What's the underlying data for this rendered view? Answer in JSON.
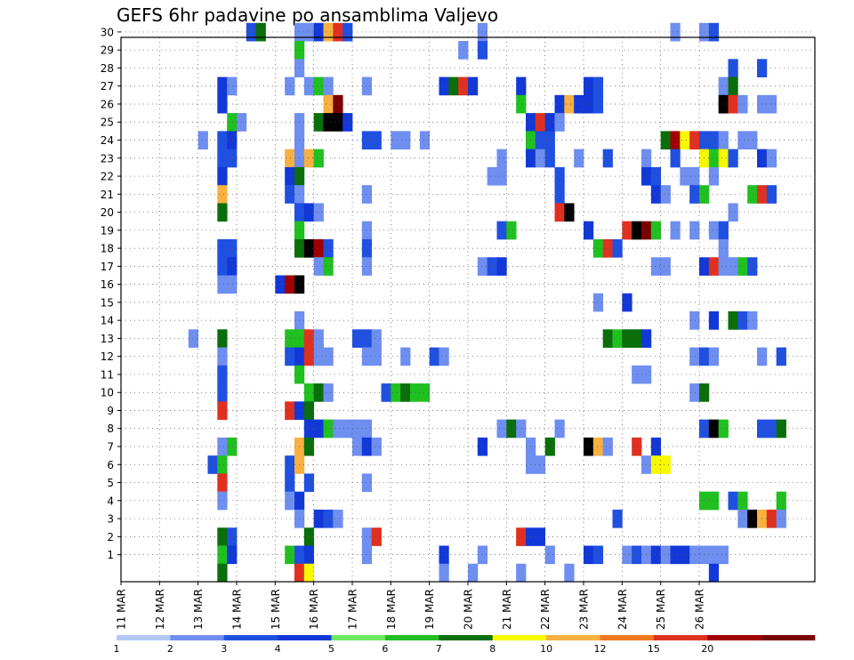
{
  "chart_data": {
    "type": "heatmap",
    "title": "GEFS 6hr padavine po ansamblima Valjevo",
    "y_ticks": [
      "1",
      "2",
      "3",
      "4",
      "5",
      "6",
      "7",
      "8",
      "9",
      "10",
      "11",
      "12",
      "13",
      "14",
      "15",
      "16",
      "17",
      "18",
      "19",
      "20",
      "21",
      "22",
      "23",
      "24",
      "25",
      "26",
      "27",
      "28",
      "29",
      "30"
    ],
    "x_ticks": [
      "11 MAR",
      "12 MAR",
      "13 MAR",
      "14 MAR",
      "15 MAR",
      "16 MAR",
      "17 MAR",
      "18 MAR",
      "19 MAR",
      "20 MAR",
      "21 MAR",
      "22 MAR",
      "23 MAR",
      "24 MAR",
      "25 MAR",
      "26 MAR"
    ],
    "x_axis_start": "2019-03-11 00Z",
    "time_step_hours": 6,
    "grid": true,
    "colorbar": {
      "levels": [
        "1",
        "2",
        "3",
        "4",
        "5",
        "6",
        "7",
        "8",
        "10",
        "12",
        "15",
        "20"
      ],
      "colors": [
        "#b4c8f8",
        "#6e8ef0",
        "#2050e0",
        "#1238d8",
        "#6ee860",
        "#20c020",
        "#0a6e0a",
        "#f8f800",
        "#f8b040",
        "#f07820",
        "#e03020",
        "#a00000",
        "#7a0000"
      ]
    },
    "cells": [
      [
        30,
        13,
        2
      ],
      [
        30,
        14,
        6
      ],
      [
        30,
        18,
        1
      ],
      [
        30,
        19,
        1
      ],
      [
        30,
        20,
        3
      ],
      [
        30,
        21,
        8
      ],
      [
        30,
        22,
        10
      ],
      [
        30,
        23,
        2
      ],
      [
        30,
        37,
        1
      ],
      [
        30,
        57,
        1
      ],
      [
        30,
        60,
        1
      ],
      [
        30,
        61,
        2
      ],
      [
        29,
        18,
        5
      ],
      [
        29,
        35,
        1
      ],
      [
        29,
        37,
        2
      ],
      [
        28,
        18,
        1
      ],
      [
        28,
        63,
        2
      ],
      [
        28,
        66,
        2
      ],
      [
        27,
        10,
        3
      ],
      [
        27,
        11,
        1
      ],
      [
        27,
        17,
        1
      ],
      [
        27,
        19,
        1
      ],
      [
        27,
        20,
        5
      ],
      [
        27,
        21,
        1
      ],
      [
        27,
        25,
        1
      ],
      [
        27,
        33,
        3
      ],
      [
        27,
        34,
        6
      ],
      [
        27,
        35,
        10
      ],
      [
        27,
        36,
        3
      ],
      [
        27,
        41,
        3
      ],
      [
        27,
        48,
        3
      ],
      [
        27,
        49,
        2
      ],
      [
        27,
        62,
        1
      ],
      [
        27,
        63,
        6
      ],
      [
        26,
        10,
        3
      ],
      [
        26,
        21,
        8
      ],
      [
        26,
        22,
        12
      ],
      [
        26,
        41,
        5
      ],
      [
        26,
        45,
        3
      ],
      [
        26,
        46,
        8
      ],
      [
        26,
        47,
        3
      ],
      [
        26,
        48,
        3
      ],
      [
        26,
        49,
        2
      ],
      [
        26,
        62,
        13
      ],
      [
        26,
        63,
        10
      ],
      [
        26,
        64,
        1
      ],
      [
        26,
        66,
        1
      ],
      [
        26,
        67,
        1
      ],
      [
        25,
        11,
        5
      ],
      [
        25,
        12,
        1
      ],
      [
        25,
        18,
        1
      ],
      [
        25,
        20,
        6
      ],
      [
        25,
        21,
        14
      ],
      [
        25,
        22,
        14
      ],
      [
        25,
        23,
        3
      ],
      [
        25,
        42,
        3
      ],
      [
        25,
        43,
        10
      ],
      [
        25,
        44,
        3
      ],
      [
        25,
        45,
        1
      ],
      [
        24,
        8,
        1
      ],
      [
        24,
        10,
        2
      ],
      [
        24,
        11,
        3
      ],
      [
        24,
        18,
        1
      ],
      [
        24,
        25,
        2
      ],
      [
        24,
        26,
        2
      ],
      [
        24,
        28,
        1
      ],
      [
        24,
        29,
        1
      ],
      [
        24,
        31,
        1
      ],
      [
        24,
        42,
        5
      ],
      [
        24,
        43,
        2
      ],
      [
        24,
        44,
        2
      ],
      [
        24,
        56,
        6
      ],
      [
        24,
        57,
        11
      ],
      [
        24,
        58,
        7
      ],
      [
        24,
        59,
        10
      ],
      [
        24,
        60,
        2
      ],
      [
        24,
        61,
        2
      ],
      [
        24,
        62,
        1
      ],
      [
        24,
        64,
        1
      ],
      [
        24,
        65,
        1
      ],
      [
        23,
        10,
        2
      ],
      [
        23,
        11,
        2
      ],
      [
        23,
        17,
        8
      ],
      [
        23,
        18,
        1
      ],
      [
        23,
        19,
        8
      ],
      [
        23,
        20,
        5
      ],
      [
        23,
        39,
        1
      ],
      [
        23,
        42,
        3
      ],
      [
        23,
        43,
        1
      ],
      [
        23,
        44,
        2
      ],
      [
        23,
        47,
        1
      ],
      [
        23,
        50,
        2
      ],
      [
        23,
        54,
        1
      ],
      [
        23,
        57,
        2
      ],
      [
        23,
        60,
        7
      ],
      [
        23,
        61,
        5
      ],
      [
        23,
        62,
        7
      ],
      [
        23,
        63,
        2
      ],
      [
        23,
        66,
        3
      ],
      [
        23,
        67,
        1
      ],
      [
        22,
        10,
        3
      ],
      [
        22,
        17,
        3
      ],
      [
        22,
        18,
        6
      ],
      [
        22,
        38,
        1
      ],
      [
        22,
        39,
        1
      ],
      [
        22,
        45,
        2
      ],
      [
        22,
        54,
        3
      ],
      [
        22,
        55,
        2
      ],
      [
        22,
        58,
        1
      ],
      [
        22,
        59,
        1
      ],
      [
        22,
        61,
        1
      ],
      [
        21,
        10,
        8
      ],
      [
        21,
        17,
        2
      ],
      [
        21,
        18,
        1
      ],
      [
        21,
        25,
        1
      ],
      [
        21,
        45,
        2
      ],
      [
        21,
        55,
        3
      ],
      [
        21,
        56,
        1
      ],
      [
        21,
        59,
        2
      ],
      [
        21,
        60,
        5
      ],
      [
        21,
        65,
        5
      ],
      [
        21,
        66,
        10
      ],
      [
        21,
        67,
        2
      ],
      [
        20,
        10,
        6
      ],
      [
        20,
        18,
        2
      ],
      [
        20,
        19,
        3
      ],
      [
        20,
        20,
        1
      ],
      [
        20,
        45,
        10
      ],
      [
        20,
        46,
        13
      ],
      [
        20,
        63,
        1
      ],
      [
        19,
        18,
        5
      ],
      [
        19,
        25,
        1
      ],
      [
        19,
        39,
        2
      ],
      [
        19,
        40,
        5
      ],
      [
        19,
        48,
        3
      ],
      [
        19,
        52,
        10
      ],
      [
        19,
        53,
        13
      ],
      [
        19,
        54,
        12
      ],
      [
        19,
        55,
        5
      ],
      [
        19,
        57,
        1
      ],
      [
        19,
        59,
        1
      ],
      [
        19,
        61,
        1
      ],
      [
        19,
        62,
        2
      ],
      [
        18,
        10,
        2
      ],
      [
        18,
        11,
        2
      ],
      [
        18,
        18,
        6
      ],
      [
        18,
        19,
        14
      ],
      [
        18,
        20,
        11
      ],
      [
        18,
        21,
        2
      ],
      [
        18,
        25,
        2
      ],
      [
        18,
        49,
        5
      ],
      [
        18,
        50,
        10
      ],
      [
        18,
        51,
        2
      ],
      [
        18,
        62,
        1
      ],
      [
        17,
        10,
        2
      ],
      [
        17,
        11,
        3
      ],
      [
        17,
        20,
        1
      ],
      [
        17,
        21,
        5
      ],
      [
        17,
        25,
        1
      ],
      [
        17,
        37,
        1
      ],
      [
        17,
        38,
        2
      ],
      [
        17,
        39,
        3
      ],
      [
        17,
        55,
        1
      ],
      [
        17,
        56,
        1
      ],
      [
        17,
        60,
        3
      ],
      [
        17,
        61,
        10
      ],
      [
        17,
        62,
        1
      ],
      [
        17,
        63,
        1
      ],
      [
        17,
        64,
        5
      ],
      [
        17,
        65,
        2
      ],
      [
        16,
        10,
        1
      ],
      [
        16,
        11,
        1
      ],
      [
        16,
        16,
        3
      ],
      [
        16,
        17,
        11
      ],
      [
        16,
        18,
        13
      ],
      [
        15,
        49,
        1
      ],
      [
        15,
        52,
        3
      ],
      [
        14,
        18,
        1
      ],
      [
        14,
        59,
        1
      ],
      [
        14,
        61,
        3
      ],
      [
        14,
        63,
        6
      ],
      [
        14,
        64,
        2
      ],
      [
        14,
        65,
        1
      ],
      [
        13,
        7,
        1
      ],
      [
        13,
        10,
        6
      ],
      [
        13,
        17,
        5
      ],
      [
        13,
        18,
        5
      ],
      [
        13,
        19,
        10
      ],
      [
        13,
        20,
        1
      ],
      [
        13,
        24,
        2
      ],
      [
        13,
        25,
        2
      ],
      [
        13,
        26,
        1
      ],
      [
        13,
        50,
        6
      ],
      [
        13,
        51,
        5
      ],
      [
        13,
        52,
        6
      ],
      [
        13,
        53,
        6
      ],
      [
        13,
        54,
        3
      ],
      [
        12,
        10,
        1
      ],
      [
        12,
        17,
        2
      ],
      [
        12,
        18,
        3
      ],
      [
        12,
        19,
        10
      ],
      [
        12,
        20,
        1
      ],
      [
        12,
        21,
        1
      ],
      [
        12,
        25,
        1
      ],
      [
        12,
        26,
        1
      ],
      [
        12,
        29,
        1
      ],
      [
        12,
        32,
        2
      ],
      [
        12,
        33,
        1
      ],
      [
        12,
        59,
        1
      ],
      [
        12,
        60,
        2
      ],
      [
        12,
        61,
        1
      ],
      [
        12,
        66,
        1
      ],
      [
        12,
        68,
        2
      ],
      [
        11,
        10,
        2
      ],
      [
        11,
        18,
        5
      ],
      [
        11,
        53,
        1
      ],
      [
        11,
        54,
        1
      ],
      [
        10,
        10,
        2
      ],
      [
        10,
        19,
        5
      ],
      [
        10,
        20,
        6
      ],
      [
        10,
        21,
        1
      ],
      [
        10,
        27,
        2
      ],
      [
        10,
        28,
        5
      ],
      [
        10,
        29,
        6
      ],
      [
        10,
        30,
        5
      ],
      [
        10,
        31,
        5
      ],
      [
        10,
        59,
        1
      ],
      [
        10,
        60,
        6
      ],
      [
        9,
        10,
        10
      ],
      [
        9,
        17,
        10
      ],
      [
        9,
        18,
        3
      ],
      [
        9,
        19,
        6
      ],
      [
        8,
        19,
        3
      ],
      [
        8,
        20,
        3
      ],
      [
        8,
        21,
        5
      ],
      [
        8,
        22,
        1
      ],
      [
        8,
        23,
        1
      ],
      [
        8,
        24,
        1
      ],
      [
        8,
        25,
        1
      ],
      [
        8,
        39,
        1
      ],
      [
        8,
        40,
        6
      ],
      [
        8,
        41,
        1
      ],
      [
        8,
        45,
        1
      ],
      [
        8,
        60,
        2
      ],
      [
        8,
        61,
        13
      ],
      [
        8,
        62,
        5
      ],
      [
        8,
        66,
        2
      ],
      [
        8,
        67,
        2
      ],
      [
        8,
        68,
        6
      ],
      [
        7,
        10,
        1
      ],
      [
        7,
        11,
        5
      ],
      [
        7,
        18,
        8
      ],
      [
        7,
        19,
        6
      ],
      [
        7,
        24,
        1
      ],
      [
        7,
        25,
        3
      ],
      [
        7,
        26,
        1
      ],
      [
        7,
        37,
        3
      ],
      [
        7,
        42,
        1
      ],
      [
        7,
        44,
        6
      ],
      [
        7,
        48,
        14
      ],
      [
        7,
        49,
        8
      ],
      [
        7,
        50,
        1
      ],
      [
        7,
        53,
        10
      ],
      [
        7,
        55,
        3
      ],
      [
        6,
        9,
        2
      ],
      [
        6,
        10,
        5
      ],
      [
        6,
        17,
        2
      ],
      [
        6,
        18,
        8
      ],
      [
        6,
        42,
        1
      ],
      [
        6,
        43,
        1
      ],
      [
        6,
        54,
        1
      ],
      [
        6,
        55,
        7
      ],
      [
        6,
        56,
        7
      ],
      [
        5,
        10,
        10
      ],
      [
        5,
        17,
        2
      ],
      [
        5,
        19,
        2
      ],
      [
        5,
        25,
        1
      ],
      [
        4,
        10,
        1
      ],
      [
        4,
        17,
        1
      ],
      [
        4,
        18,
        3
      ],
      [
        4,
        60,
        5
      ],
      [
        4,
        61,
        5
      ],
      [
        4,
        63,
        2
      ],
      [
        4,
        64,
        5
      ],
      [
        4,
        68,
        5
      ],
      [
        3,
        18,
        1
      ],
      [
        3,
        20,
        3
      ],
      [
        3,
        21,
        2
      ],
      [
        3,
        22,
        1
      ],
      [
        3,
        51,
        2
      ],
      [
        3,
        64,
        1
      ],
      [
        3,
        65,
        13
      ],
      [
        3,
        66,
        8
      ],
      [
        3,
        67,
        10
      ],
      [
        3,
        68,
        1
      ],
      [
        2,
        10,
        6
      ],
      [
        2,
        11,
        2
      ],
      [
        2,
        19,
        6
      ],
      [
        2,
        25,
        1
      ],
      [
        2,
        26,
        10
      ],
      [
        2,
        41,
        10
      ],
      [
        2,
        42,
        3
      ],
      [
        2,
        43,
        3
      ],
      [
        1,
        10,
        5
      ],
      [
        1,
        11,
        3
      ],
      [
        1,
        17,
        5
      ],
      [
        1,
        18,
        2
      ],
      [
        1,
        19,
        3
      ],
      [
        1,
        25,
        1
      ],
      [
        1,
        33,
        3
      ],
      [
        1,
        37,
        1
      ],
      [
        1,
        44,
        1
      ],
      [
        1,
        48,
        3
      ],
      [
        1,
        49,
        2
      ],
      [
        1,
        52,
        1
      ],
      [
        1,
        53,
        2
      ],
      [
        1,
        54,
        1
      ],
      [
        1,
        55,
        3
      ],
      [
        1,
        56,
        1
      ],
      [
        1,
        57,
        3
      ],
      [
        1,
        58,
        3
      ],
      [
        1,
        59,
        1
      ],
      [
        1,
        60,
        1
      ],
      [
        1,
        61,
        1
      ],
      [
        1,
        62,
        1
      ],
      [
        0,
        10,
        6
      ],
      [
        0,
        18,
        10
      ],
      [
        0,
        19,
        7
      ],
      [
        0,
        33,
        1
      ],
      [
        0,
        36,
        1
      ],
      [
        0,
        41,
        1
      ],
      [
        0,
        46,
        1
      ],
      [
        0,
        61,
        3
      ]
    ]
  }
}
